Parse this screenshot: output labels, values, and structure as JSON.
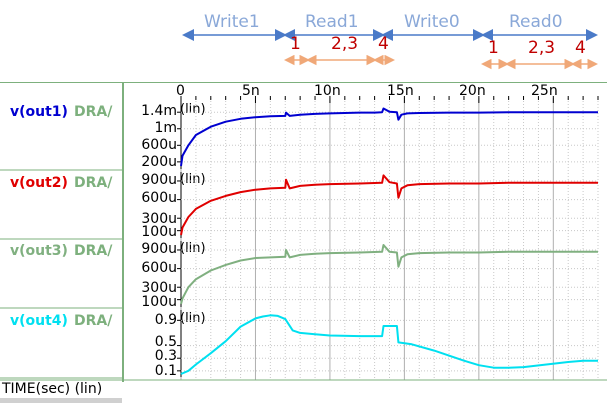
{
  "timing": {
    "phases": [
      "Write1",
      "Read1",
      "Write0",
      "Read0"
    ],
    "read1_steps": [
      "1",
      "2,3",
      "4"
    ],
    "read0_steps": [
      "1",
      "2,3",
      "4"
    ]
  },
  "colors": {
    "phase_arrow": "#4a7ac8",
    "step_arrow": "#f0a878",
    "phase_text": "#8aa8d8",
    "step_text": "#c00000",
    "grid": "#c8c8c8",
    "frame": "#7db07d"
  },
  "x_axis": {
    "ticks": [
      "0",
      "5n",
      "10n",
      "15n",
      "20n",
      "25n"
    ],
    "label": "TIME(sec) (lin)"
  },
  "chart_data": [
    {
      "type": "line",
      "trace": "v(out1)",
      "label_suffix": "DRA/",
      "scale_note": "(lin)",
      "color": "#0000d0",
      "y_ticks": [
        "1.4m",
        "1m",
        "600u",
        "200u"
      ],
      "y_tick_values": [
        0.0014,
        0.001,
        0.0006,
        0.0002
      ],
      "ylim": [
        0.0001,
        0.00155
      ],
      "xlim": [
        0,
        2.8e-08
      ],
      "x": [
        0,
        1e-10,
        5e-10,
        1e-09,
        2e-09,
        3e-09,
        4e-09,
        5e-09,
        6e-09,
        7e-09,
        7.05e-09,
        7.3e-09,
        8e-09,
        9e-09,
        1e-08,
        1.1e-08,
        1.2e-08,
        1.3e-08,
        1.35e-08,
        1.36e-08,
        1.4e-08,
        1.45e-08,
        1.46e-08,
        1.48e-08,
        1.52e-08,
        1.6e-08,
        1.8e-08,
        2e-08,
        2.2e-08,
        2.4e-08,
        2.6e-08,
        2.8e-08
      ],
      "y": [
        0.0001,
        0.00035,
        0.0006,
        0.00085,
        0.00105,
        0.00117,
        0.00124,
        0.00128,
        0.0013,
        0.00131,
        0.00139,
        0.00131,
        0.00134,
        0.00136,
        0.00137,
        0.00138,
        0.00139,
        0.00139,
        0.0014,
        0.00149,
        0.00141,
        0.0014,
        0.00122,
        0.00134,
        0.00137,
        0.00138,
        0.00139,
        0.00139,
        0.0014,
        0.0014,
        0.0014,
        0.0014
      ]
    },
    {
      "type": "line",
      "trace": "v(out2)",
      "label_suffix": "DRA/",
      "scale_note": "(lin)",
      "color": "#e00000",
      "y_ticks": [
        "900u",
        "600u",
        "300u",
        "100u"
      ],
      "y_tick_values": [
        0.0009,
        0.0006,
        0.0003,
        0.0001
      ],
      "ylim": [
        3e-05,
        0.00098
      ],
      "xlim": [
        0,
        2.8e-08
      ],
      "x": [
        0,
        1e-10,
        5e-10,
        1e-09,
        2e-09,
        3e-09,
        4e-09,
        5e-09,
        6e-09,
        7e-09,
        7.05e-09,
        7.3e-09,
        8e-09,
        9e-09,
        1e-08,
        1.2e-08,
        1.35e-08,
        1.36e-08,
        1.4e-08,
        1.45e-08,
        1.46e-08,
        1.48e-08,
        1.52e-08,
        1.6e-08,
        1.8e-08,
        2e-08,
        2.2e-08,
        2.4e-08,
        2.6e-08,
        2.8e-08
      ],
      "y": [
        3e-05,
        0.00015,
        0.00032,
        0.00045,
        0.00058,
        0.00066,
        0.00072,
        0.00076,
        0.00078,
        0.00079,
        0.00092,
        0.00078,
        0.00082,
        0.00084,
        0.00085,
        0.00086,
        0.00087,
        0.00099,
        0.00088,
        0.00086,
        0.00063,
        0.00078,
        0.00083,
        0.00085,
        0.00086,
        0.00086,
        0.00087,
        0.00087,
        0.00087,
        0.00087
      ]
    },
    {
      "type": "line",
      "trace": "v(out3)",
      "label_suffix": "DRA/",
      "scale_note": "(lin)",
      "color": "#80b080",
      "y_ticks": [
        "900u",
        "600u",
        "300u",
        "100u"
      ],
      "y_tick_values": [
        0.0009,
        0.0006,
        0.0003,
        0.0001
      ],
      "ylim": [
        3e-05,
        0.00098
      ],
      "xlim": [
        0,
        2.8e-08
      ],
      "x": [
        0,
        1e-10,
        5e-10,
        1e-09,
        2e-09,
        3e-09,
        4e-09,
        5e-09,
        6e-09,
        7e-09,
        7.05e-09,
        7.3e-09,
        8e-09,
        9e-09,
        1e-08,
        1.2e-08,
        1.35e-08,
        1.36e-08,
        1.4e-08,
        1.45e-08,
        1.46e-08,
        1.48e-08,
        1.52e-08,
        1.6e-08,
        1.8e-08,
        2e-08,
        2.2e-08,
        2.4e-08,
        2.6e-08,
        2.8e-08
      ],
      "y": [
        3e-05,
        0.00012,
        0.0003,
        0.00043,
        0.00057,
        0.00066,
        0.00073,
        0.00077,
        0.00078,
        0.00079,
        0.0009,
        0.00078,
        0.00082,
        0.00084,
        0.00085,
        0.00086,
        0.00087,
        0.00098,
        0.00087,
        0.00086,
        0.00063,
        0.00078,
        0.00083,
        0.00085,
        0.00086,
        0.00086,
        0.00087,
        0.00087,
        0.00087,
        0.00087
      ]
    },
    {
      "type": "line",
      "trace": "v(out4)",
      "label_suffix": "DRA/",
      "scale_note": "(lin)",
      "color": "#00e0f0",
      "y_ticks": [
        "0.9",
        "0.5",
        "0.3",
        "0.1"
      ],
      "y_tick_values": [
        0.9,
        0.5,
        0.3,
        0.1
      ],
      "ylim": [
        0.05,
        1.0
      ],
      "xlim": [
        0,
        2.8e-08
      ],
      "x": [
        0,
        5e-10,
        1e-09,
        2e-09,
        3e-09,
        4e-09,
        5e-09,
        5.5e-09,
        6e-09,
        6.5e-09,
        7e-09,
        7.5e-09,
        8e-09,
        9e-09,
        1e-08,
        1.2e-08,
        1.3e-08,
        1.35e-08,
        1.36e-08,
        1.45e-08,
        1.46e-08,
        1.55e-08,
        1.7e-08,
        1.9e-08,
        2e-08,
        2.1e-08,
        2.2e-08,
        2.3e-08,
        2.6e-08,
        2.7e-08,
        2.8e-08
      ],
      "y": [
        0.05,
        0.1,
        0.2,
        0.38,
        0.57,
        0.8,
        0.93,
        0.96,
        0.98,
        0.97,
        0.92,
        0.74,
        0.7,
        0.68,
        0.66,
        0.65,
        0.65,
        0.65,
        0.81,
        0.81,
        0.55,
        0.52,
        0.42,
        0.26,
        0.19,
        0.15,
        0.15,
        0.16,
        0.24,
        0.26,
        0.26
      ]
    }
  ]
}
